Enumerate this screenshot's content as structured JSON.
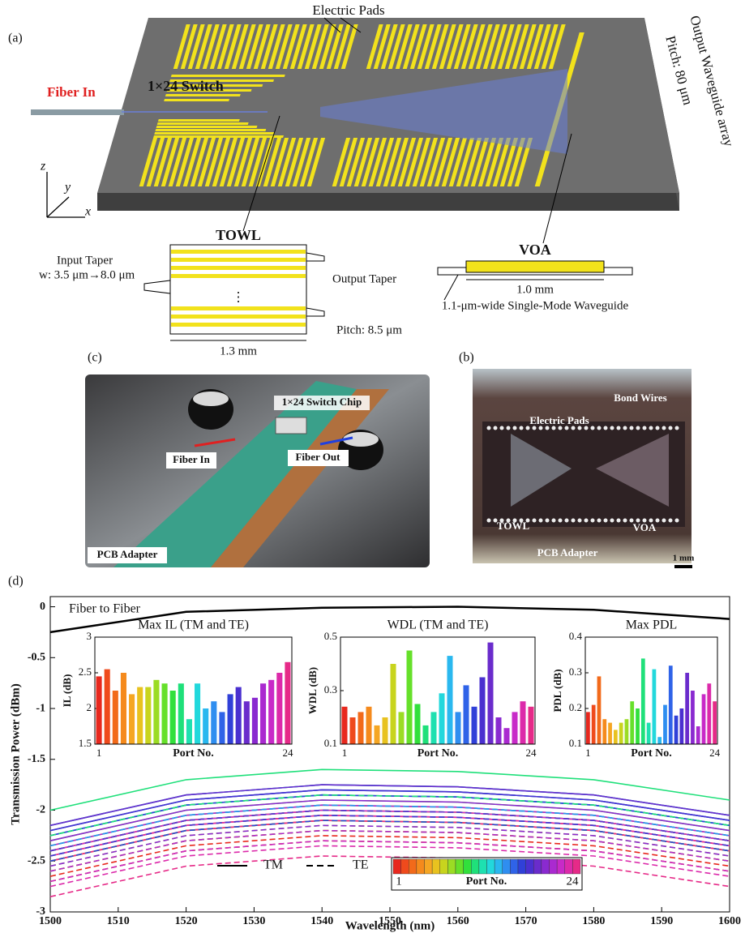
{
  "panel_a": {
    "label": "(a)",
    "electric_pads": "Electric Pads",
    "fiber_in": "Fiber In",
    "switch": "1×24 Switch",
    "output_array": "Output Waveguide array",
    "output_pitch": "Pitch: 80 μm",
    "axes": {
      "z": "z",
      "y": "y",
      "x": "x"
    },
    "towl": {
      "title": "TOWL",
      "input_taper": "Input Taper",
      "width": "w: 3.5 μm→8.0 μm",
      "output_taper": "Output Taper",
      "pitch": "Pitch: 8.5 μm",
      "length": "1.3 mm",
      "ellipsis": "⋮"
    },
    "voa": {
      "title": "VOA",
      "length": "1.0 mm",
      "waveguide": "1.1-μm-wide Single-Mode Waveguide"
    }
  },
  "panel_c": {
    "label": "(c)",
    "chip": "1×24 Switch Chip",
    "fiber_in": "Fiber In",
    "fiber_out": "Fiber Out",
    "pcb": "PCB Adapter"
  },
  "panel_b": {
    "label": "(b)",
    "electric_pads": "Electric Pads",
    "bond_wires": "Bond Wires",
    "towl": "TOWL",
    "voa": "VOA",
    "pcb": "PCB Adapter",
    "scale": "1 mm"
  },
  "panel_d_label": "(d)",
  "chart_data": [
    {
      "type": "line",
      "xlabel": "Wavelength (nm)",
      "ylabel": "Transmission Power (dBm)",
      "x": [
        1500,
        1520,
        1540,
        1560,
        1580,
        1600
      ],
      "xlim": [
        1500,
        1600
      ],
      "xticks": [
        1500,
        1510,
        1520,
        1530,
        1540,
        1550,
        1560,
        1570,
        1580,
        1590,
        1600
      ],
      "ylim": [
        -3,
        0.1
      ],
      "yticks": [
        0,
        -0.5,
        -1,
        -1.5,
        -2,
        -2.5,
        -3
      ],
      "series": [
        {
          "name": "Fiber to Fiber",
          "color": "#000000",
          "values": [
            -0.25,
            -0.05,
            -0.01,
            0,
            -0.03,
            -0.12
          ]
        }
      ],
      "port_colors": [
        "#e8281e",
        "#ef4a1c",
        "#f26a1a",
        "#f58a1c",
        "#f5a623",
        "#e8c21f",
        "#c8d41e",
        "#9bdc24",
        "#66e02a",
        "#32e03c",
        "#1fe07a",
        "#1ee0b0",
        "#22d8dc",
        "#2ab8ef",
        "#2f8ef0",
        "#2f63e8",
        "#3040d8",
        "#4a30d0",
        "#6a2ccc",
        "#8a2ad0",
        "#aa2ad0",
        "#c82ac8",
        "#dc2aaa",
        "#e62a88"
      ],
      "polarizations": [
        {
          "name": "TM",
          "dash": "solid",
          "curves": [
            [
              -2.45,
              -2.15,
              -2.05,
              -2.07,
              -2.15,
              -2.35
            ],
            [
              -2.5,
              -2.2,
              -2.1,
              -2.12,
              -2.2,
              -2.4
            ],
            [
              -2.4,
              -2.1,
              -2.0,
              -2.02,
              -2.1,
              -2.3
            ],
            [
              -2.5,
              -2.2,
              -2.1,
              -2.12,
              -2.2,
              -2.4
            ],
            [
              -2.4,
              -2.1,
              -2.0,
              -2.02,
              -2.1,
              -2.3
            ],
            [
              -2.45,
              -2.15,
              -2.05,
              -2.07,
              -2.15,
              -2.35
            ],
            [
              -2.4,
              -2.1,
              -2.0,
              -2.02,
              -2.1,
              -2.3
            ],
            [
              -2.35,
              -2.05,
              -1.95,
              -1.97,
              -2.05,
              -2.25
            ],
            [
              -2.3,
              -2.0,
              -1.9,
              -1.92,
              -2.0,
              -2.2
            ],
            [
              -2.25,
              -1.95,
              -1.85,
              -1.87,
              -1.95,
              -2.15
            ],
            [
              -2.0,
              -1.7,
              -1.6,
              -1.62,
              -1.7,
              -1.9
            ],
            [
              -2.15,
              -1.85,
              -1.75,
              -1.77,
              -1.85,
              -2.05
            ],
            [
              -2.2,
              -1.9,
              -1.8,
              -1.82,
              -1.9,
              -2.1
            ],
            [
              -2.25,
              -1.95,
              -1.85,
              -1.87,
              -1.95,
              -2.15
            ],
            [
              -2.15,
              -1.85,
              -1.75,
              -1.77,
              -1.85,
              -2.05
            ],
            [
              -2.2,
              -1.9,
              -1.8,
              -1.82,
              -1.9,
              -2.1
            ],
            [
              -2.25,
              -1.95,
              -1.85,
              -1.87,
              -1.95,
              -2.15
            ],
            [
              -2.2,
              -1.9,
              -1.8,
              -1.82,
              -1.9,
              -2.1
            ],
            [
              -2.15,
              -1.85,
              -1.75,
              -1.77,
              -1.85,
              -2.05
            ],
            [
              -2.3,
              -2.0,
              -1.9,
              -1.92,
              -2.0,
              -2.2
            ],
            [
              -2.35,
              -2.05,
              -1.95,
              -1.97,
              -2.05,
              -2.25
            ],
            [
              -2.4,
              -2.1,
              -2.0,
              -2.02,
              -2.1,
              -2.3
            ],
            [
              -2.45,
              -2.15,
              -2.05,
              -2.07,
              -2.15,
              -2.35
            ],
            [
              -2.5,
              -2.2,
              -2.1,
              -2.12,
              -2.2,
              -2.4
            ]
          ]
        },
        {
          "name": "TE",
          "dash": "dashed",
          "curves": [
            [
              -2.65,
              -2.35,
              -2.25,
              -2.27,
              -2.35,
              -2.55
            ],
            [
              -2.7,
              -2.4,
              -2.3,
              -2.32,
              -2.4,
              -2.6
            ],
            [
              -2.6,
              -2.3,
              -2.2,
              -2.22,
              -2.3,
              -2.5
            ],
            [
              -2.7,
              -2.4,
              -2.3,
              -2.32,
              -2.4,
              -2.6
            ],
            [
              -2.6,
              -2.3,
              -2.2,
              -2.22,
              -2.3,
              -2.5
            ],
            [
              -2.6,
              -2.3,
              -2.2,
              -2.22,
              -2.3,
              -2.5
            ],
            [
              -2.55,
              -2.25,
              -2.15,
              -2.17,
              -2.25,
              -2.45
            ],
            [
              -2.5,
              -2.2,
              -2.1,
              -2.12,
              -2.2,
              -2.4
            ],
            [
              -2.5,
              -2.2,
              -2.1,
              -2.12,
              -2.2,
              -2.4
            ],
            [
              -2.4,
              -2.1,
              -2.0,
              -2.02,
              -2.1,
              -2.3
            ],
            [
              -2.25,
              -1.95,
              -1.85,
              -1.87,
              -1.95,
              -2.15
            ],
            [
              -2.35,
              -2.05,
              -1.95,
              -1.97,
              -2.05,
              -2.25
            ],
            [
              -2.4,
              -2.1,
              -2.0,
              -2.02,
              -2.1,
              -2.3
            ],
            [
              -2.45,
              -2.15,
              -2.05,
              -2.07,
              -2.15,
              -2.35
            ],
            [
              -2.35,
              -2.05,
              -1.95,
              -1.97,
              -2.05,
              -2.25
            ],
            [
              -2.4,
              -2.1,
              -2.0,
              -2.02,
              -2.1,
              -2.3
            ],
            [
              -2.5,
              -2.2,
              -2.1,
              -2.12,
              -2.2,
              -2.4
            ],
            [
              -2.45,
              -2.15,
              -2.05,
              -2.07,
              -2.15,
              -2.35
            ],
            [
              -2.4,
              -2.1,
              -2.0,
              -2.02,
              -2.1,
              -2.3
            ],
            [
              -2.55,
              -2.25,
              -2.15,
              -2.17,
              -2.25,
              -2.45
            ],
            [
              -2.6,
              -2.3,
              -2.2,
              -2.22,
              -2.3,
              -2.5
            ],
            [
              -2.7,
              -2.4,
              -2.3,
              -2.32,
              -2.4,
              -2.6
            ],
            [
              -2.75,
              -2.45,
              -2.35,
              -2.37,
              -2.45,
              -2.65
            ],
            [
              -2.85,
              -2.55,
              -2.45,
              -2.47,
              -2.55,
              -2.75
            ]
          ]
        }
      ],
      "colorbar": {
        "min_label": "1",
        "title": "Port No.",
        "max_label": "24"
      }
    },
    {
      "type": "bar",
      "title": "Max IL (TM and TE)",
      "xlabel": "Port No.",
      "ylabel": "IL (dB)",
      "categories": [
        1,
        null,
        null,
        null,
        null,
        null,
        null,
        null,
        null,
        null,
        null,
        null,
        null,
        null,
        null,
        null,
        null,
        null,
        null,
        null,
        null,
        null,
        null,
        24
      ],
      "values": [
        2.45,
        2.55,
        2.25,
        2.5,
        2.2,
        2.3,
        2.3,
        2.4,
        2.35,
        2.25,
        2.35,
        1.85,
        2.35,
        2.0,
        2.1,
        1.95,
        2.2,
        2.3,
        2.1,
        2.15,
        2.35,
        2.4,
        2.5,
        2.65
      ],
      "ylim": [
        1.5,
        3
      ],
      "yticks": [
        1.5,
        2,
        2.5,
        3
      ]
    },
    {
      "type": "bar",
      "title": "WDL (TM and TE)",
      "xlabel": "Port No.",
      "ylabel": "WDL (dB)",
      "categories": [
        1,
        null,
        null,
        null,
        null,
        null,
        null,
        null,
        null,
        null,
        null,
        null,
        null,
        null,
        null,
        null,
        null,
        null,
        null,
        null,
        null,
        null,
        null,
        24
      ],
      "values": [
        0.24,
        0.2,
        0.22,
        0.24,
        0.17,
        0.2,
        0.4,
        0.22,
        0.45,
        0.25,
        0.17,
        0.22,
        0.29,
        0.43,
        0.22,
        0.32,
        0.24,
        0.35,
        0.48,
        0.2,
        0.16,
        0.22,
        0.26,
        0.24
      ],
      "ylim": [
        0.1,
        0.5
      ],
      "yticks": [
        0.1,
        0.3,
        0.5
      ]
    },
    {
      "type": "bar",
      "title": "Max PDL",
      "xlabel": "Port No.",
      "ylabel": "PDL (dB)",
      "categories": [
        1,
        null,
        null,
        null,
        null,
        null,
        null,
        null,
        null,
        null,
        null,
        null,
        null,
        null,
        null,
        null,
        null,
        null,
        null,
        null,
        null,
        null,
        null,
        24
      ],
      "values": [
        0.19,
        0.21,
        0.29,
        0.17,
        0.16,
        0.14,
        0.16,
        0.17,
        0.22,
        0.2,
        0.34,
        0.16,
        0.31,
        0.12,
        0.21,
        0.32,
        0.18,
        0.2,
        0.3,
        0.25,
        0.15,
        0.24,
        0.27,
        0.22
      ],
      "ylim": [
        0.1,
        0.4
      ],
      "yticks": [
        0.1,
        0.2,
        0.3,
        0.4
      ]
    }
  ]
}
